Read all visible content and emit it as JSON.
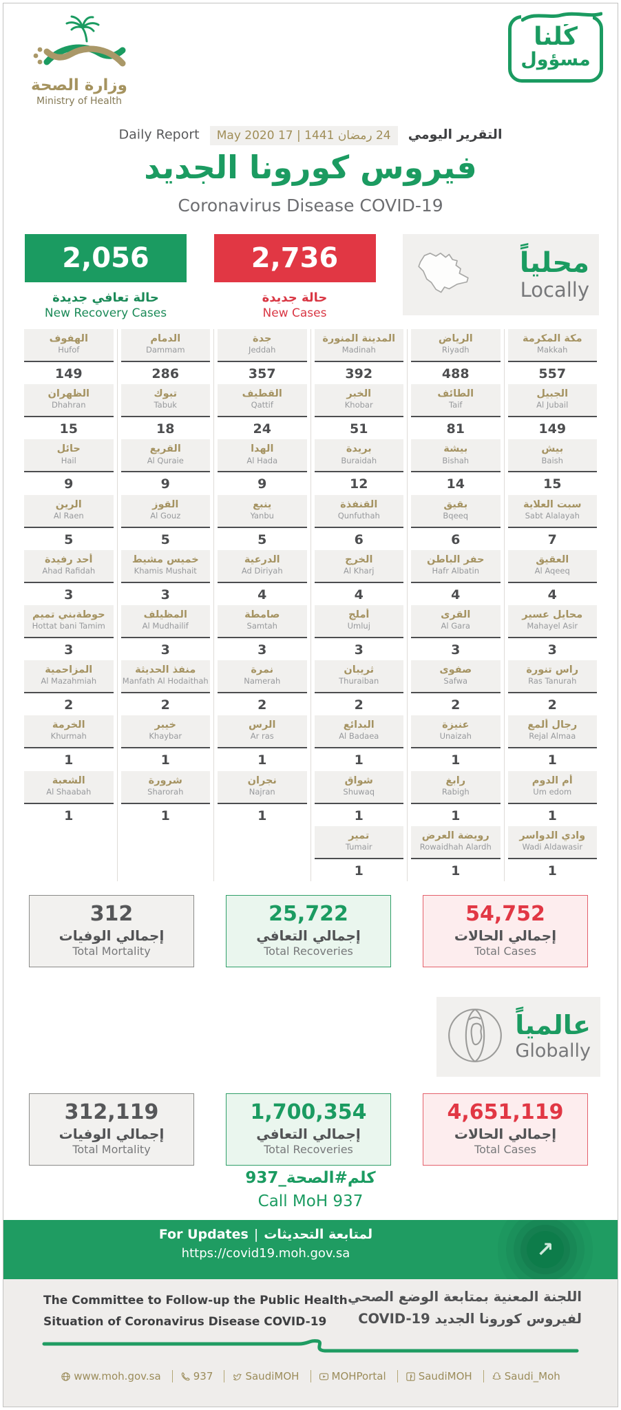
{
  "colors": {
    "green": "#1b9b61",
    "red": "#e13744",
    "gold": "#a59362",
    "dark_gray": "#4c4d4f",
    "light_gray_bg": "#f1f0ee"
  },
  "header": {
    "logo": {
      "arabic": "وزارة الصحة",
      "english": "Ministry of Health"
    },
    "badge": {
      "line1": "كُلنا",
      "line2": "مسؤول"
    }
  },
  "report": {
    "daily_report_en": "Daily Report",
    "daily_report_ar": "التقرير اليومي",
    "date": "24 رمضان 1441 | 17 May 2020",
    "title_ar": "فيروس كورونا الجديد",
    "title_en": "Coronavirus Disease COVID-19"
  },
  "new_stats": {
    "recoveries": {
      "value": "2,056",
      "label_ar": "حالة تعافي جديدة",
      "label_en": "New Recovery Cases"
    },
    "cases": {
      "value": "2,736",
      "label_ar": "حالة جديدة",
      "label_en": "New Cases"
    },
    "locally": {
      "label_ar": "محلياً",
      "label_en": "Locally"
    }
  },
  "cities": [
    {
      "ar": "مكة المكرمة",
      "en": "Makkah",
      "value": "557"
    },
    {
      "ar": "الرياض",
      "en": "Riyadh",
      "value": "488"
    },
    {
      "ar": "المدينة المنورة",
      "en": "Madinah",
      "value": "392"
    },
    {
      "ar": "جدة",
      "en": "Jeddah",
      "value": "357"
    },
    {
      "ar": "الدمام",
      "en": "Dammam",
      "value": "286"
    },
    {
      "ar": "الهفوف",
      "en": "Hufof",
      "value": "149"
    },
    {
      "ar": "الجبيل",
      "en": "Al Jubail",
      "value": "149"
    },
    {
      "ar": "الطائف",
      "en": "Taif",
      "value": "81"
    },
    {
      "ar": "الخبر",
      "en": "Khobar",
      "value": "51"
    },
    {
      "ar": "القطيف",
      "en": "Qattif",
      "value": "24"
    },
    {
      "ar": "تبوك",
      "en": "Tabuk",
      "value": "18"
    },
    {
      "ar": "الظهران",
      "en": "Dhahran",
      "value": "15"
    },
    {
      "ar": "بيش",
      "en": "Baish",
      "value": "15"
    },
    {
      "ar": "بيشة",
      "en": "Bishah",
      "value": "14"
    },
    {
      "ar": "بريدة",
      "en": "Buraidah",
      "value": "12"
    },
    {
      "ar": "الهدا",
      "en": "Al Hada",
      "value": "9"
    },
    {
      "ar": "القريع",
      "en": "Al Quraie",
      "value": "9"
    },
    {
      "ar": "حائل",
      "en": "Hail",
      "value": "9"
    },
    {
      "ar": "سبت العلاية",
      "en": "Sabt Alalayah",
      "value": "7"
    },
    {
      "ar": "بقيق",
      "en": "Bqeeq",
      "value": "6"
    },
    {
      "ar": "القنفذة",
      "en": "Qunfuthah",
      "value": "6"
    },
    {
      "ar": "ينبع",
      "en": "Yanbu",
      "value": "5"
    },
    {
      "ar": "القوز",
      "en": "Al Gouz",
      "value": "5"
    },
    {
      "ar": "الرين",
      "en": "Al Raen",
      "value": "5"
    },
    {
      "ar": "العقيق",
      "en": "Al Aqeeq",
      "value": "4"
    },
    {
      "ar": "حفر الباطن",
      "en": "Hafr Albatin",
      "value": "4"
    },
    {
      "ar": "الخرج",
      "en": "Al Kharj",
      "value": "4"
    },
    {
      "ar": "الدرعية",
      "en": "Ad Diriyah",
      "value": "4"
    },
    {
      "ar": "خميس مشيط",
      "en": "Khamis Mushait",
      "value": "3"
    },
    {
      "ar": "أحد رفيدة",
      "en": "Ahad Rafidah",
      "value": "3"
    },
    {
      "ar": "محايل عسير",
      "en": "Mahayel Asir",
      "value": "3"
    },
    {
      "ar": "القرى",
      "en": "Al Gara",
      "value": "3"
    },
    {
      "ar": "أملج",
      "en": "Umluj",
      "value": "3"
    },
    {
      "ar": "صامطة",
      "en": "Samtah",
      "value": "3"
    },
    {
      "ar": "المظيلف",
      "en": "Al Mudhailif",
      "value": "3"
    },
    {
      "ar": "حوطةبني تميم",
      "en": "Hottat bani Tamim",
      "value": "3"
    },
    {
      "ar": "راس تنورة",
      "en": "Ras Tanurah",
      "value": "2"
    },
    {
      "ar": "صفوى",
      "en": "Safwa",
      "value": "2"
    },
    {
      "ar": "ثريبان",
      "en": "Thuraiban",
      "value": "2"
    },
    {
      "ar": "نمرة",
      "en": "Namerah",
      "value": "2"
    },
    {
      "ar": "منفذ الحديثة",
      "en": "Manfath Al Hodaithah",
      "value": "2"
    },
    {
      "ar": "المزاحمية",
      "en": "Al Mazahmiah",
      "value": "2"
    },
    {
      "ar": "رجال ألمع",
      "en": "Rejal Almaa",
      "value": "1"
    },
    {
      "ar": "عنيزة",
      "en": "Unaizah",
      "value": "1"
    },
    {
      "ar": "البدائع",
      "en": "Al Badaea",
      "value": "1"
    },
    {
      "ar": "الرس",
      "en": "Ar ras",
      "value": "1"
    },
    {
      "ar": "خيبر",
      "en": "Khaybar",
      "value": "1"
    },
    {
      "ar": "الخرمة",
      "en": "Khurmah",
      "value": "1"
    },
    {
      "ar": "أم الدوم",
      "en": "Um edom",
      "value": "1"
    },
    {
      "ar": "رابغ",
      "en": "Rabigh",
      "value": "1"
    },
    {
      "ar": "شواق",
      "en": "Shuwaq",
      "value": "1"
    },
    {
      "ar": "نجران",
      "en": "Najran",
      "value": "1"
    },
    {
      "ar": "شرورة",
      "en": "Sharorah",
      "value": "1"
    },
    {
      "ar": "الشعبة",
      "en": "Al Shaabah",
      "value": "1"
    },
    {
      "ar": "وادي الدواسر",
      "en": "Wadi Aldawasir",
      "value": "1"
    },
    {
      "ar": "رويضة العرض",
      "en": "Rowaidhah Alardh",
      "value": "1"
    },
    {
      "ar": "تمير",
      "en": "Tumair",
      "value": "1"
    }
  ],
  "local_totals": [
    {
      "value": "312",
      "label_ar": "إجمالي الوفيات",
      "label_en": "Total Mortality"
    },
    {
      "value": "25,722",
      "label_ar": "إجمالي التعافي",
      "label_en": "Total Recoveries"
    },
    {
      "value": "54,752",
      "label_ar": "إجمالي الحالات",
      "label_en": "Total Cases"
    }
  ],
  "globally": {
    "label_ar": "عالمياً",
    "label_en": "Globally"
  },
  "global_totals": [
    {
      "value": "312,119",
      "label_ar": "إجمالي الوفيات",
      "label_en": "Total Mortality"
    },
    {
      "value": "1,700,354",
      "label_ar": "إجمالي التعافي",
      "label_en": "Total Recoveries"
    },
    {
      "value": "4,651,119",
      "label_ar": "إجمالي الحالات",
      "label_en": "Total Cases"
    }
  ],
  "call": {
    "ar": "كلم#الصحة_937",
    "en": "Call MoH 937"
  },
  "updates_banner": {
    "ar": "لمتابعة التحديثات",
    "sep": "|",
    "en": "For Updates",
    "url": "https://covid19.moh.gov.sa",
    "arrow": "↗"
  },
  "committee": {
    "en_line1": "The Committee to Follow-up the Public Health",
    "en_line2": "Situation of Coronavirus Disease COVID-19",
    "ar_line1": "اللجنة المعنية بمتابعة الوضع الصحي",
    "ar_line2": "لفيروس كورونا الجديد COVID-19"
  },
  "footer": {
    "contacts": [
      {
        "icon": "globe-icon",
        "label": "www.moh.gov.sa"
      },
      {
        "icon": "phone-icon",
        "label": "937"
      },
      {
        "icon": "twitter-icon",
        "label": "SaudiMOH"
      },
      {
        "icon": "youtube-icon",
        "label": "MOHPortal"
      },
      {
        "icon": "facebook-icon",
        "label": "SaudiMOH"
      },
      {
        "icon": "snapchat-icon",
        "label": "Saudi_Moh"
      }
    ]
  }
}
